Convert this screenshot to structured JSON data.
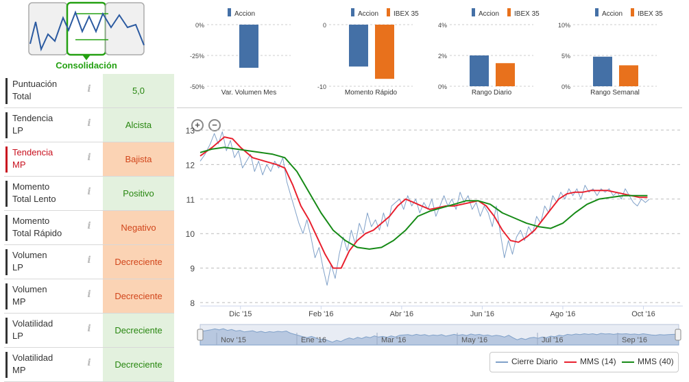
{
  "left_panel": {
    "trend_state": "Consolidación",
    "rows": [
      {
        "label1": "Puntuación",
        "label2": "Total",
        "value": "5,0",
        "status": "green",
        "highlight": false
      },
      {
        "label1": "Tendencia",
        "label2": "LP",
        "value": "Alcista",
        "status": "green",
        "highlight": false
      },
      {
        "label1": "Tendencia",
        "label2": "MP",
        "value": "Bajista",
        "status": "orange",
        "highlight": true
      },
      {
        "label1": "Momento",
        "label2": "Total Lento",
        "value": "Positivo",
        "status": "green",
        "highlight": false
      },
      {
        "label1": "Momento",
        "label2": "Total Rápido",
        "value": "Negativo",
        "status": "orange",
        "highlight": false
      },
      {
        "label1": "Volumen",
        "label2": "LP",
        "value": "Decreciente",
        "status": "orange",
        "highlight": false
      },
      {
        "label1": "Volumen",
        "label2": "MP",
        "value": "Decreciente",
        "status": "orange",
        "highlight": false
      },
      {
        "label1": "Volatilidad",
        "label2": "LP",
        "value": "Decreciente",
        "status": "green",
        "highlight": false
      },
      {
        "label1": "Volatilidad",
        "label2": "MP",
        "value": "Decreciente",
        "status": "green",
        "highlight": false
      }
    ],
    "info_glyph": "i"
  },
  "colors": {
    "accion": "#4470a6",
    "ibex": "#e8711c",
    "cierre": "#7fa0c8",
    "mms14": "#e8202e",
    "mms40": "#168a16",
    "green_text": "#23a011"
  },
  "chart_data": [
    {
      "type": "bar",
      "title": "Var. Volumen Mes",
      "legend": [
        "Accion"
      ],
      "series": [
        {
          "name": "Accion",
          "values": [
            -35
          ]
        }
      ],
      "ylim": [
        -50,
        0
      ],
      "yticks": [
        "0%",
        "-25%",
        "-50%"
      ]
    },
    {
      "type": "bar",
      "title": "Momento Rápido",
      "legend": [
        "Accion",
        "IBEX 35"
      ],
      "series": [
        {
          "name": "Accion",
          "values": [
            -6.8
          ]
        },
        {
          "name": "IBEX 35",
          "values": [
            -8.8
          ]
        }
      ],
      "ylim": [
        -10,
        0
      ],
      "yticks": [
        "0",
        "-10"
      ]
    },
    {
      "type": "bar",
      "title": "Rango Diario",
      "legend": [
        "Accion",
        "IBEX 35"
      ],
      "series": [
        {
          "name": "Accion",
          "values": [
            2.0
          ]
        },
        {
          "name": "IBEX 35",
          "values": [
            1.5
          ]
        }
      ],
      "ylim": [
        0,
        4
      ],
      "yticks": [
        "4%",
        "2%",
        "0%"
      ]
    },
    {
      "type": "bar",
      "title": "Rango Semanal",
      "legend": [
        "Accion",
        "IBEX 35"
      ],
      "series": [
        {
          "name": "Accion",
          "values": [
            4.8
          ]
        },
        {
          "name": "IBEX 35",
          "values": [
            3.4
          ]
        }
      ],
      "ylim": [
        0,
        10
      ],
      "yticks": [
        "10%",
        "5%",
        "0%"
      ]
    },
    {
      "type": "line",
      "title": "",
      "ylim": [
        8,
        13
      ],
      "yticks": [
        13,
        12,
        11,
        10,
        9,
        8
      ],
      "xrange": [
        0,
        11.4
      ],
      "xticks": [
        {
          "label": "Dic '15",
          "x": 1.0
        },
        {
          "label": "Feb '16",
          "x": 3.0
        },
        {
          "label": "Abr '16",
          "x": 5.0
        },
        {
          "label": "Jun '16",
          "x": 7.0
        },
        {
          "label": "Ago '16",
          "x": 9.0
        },
        {
          "label": "Oct '16",
          "x": 11.0
        }
      ],
      "series": [
        {
          "name": "Cierre Diario",
          "points": [
            [
              0,
              12.1
            ],
            [
              0.12,
              12.3
            ],
            [
              0.25,
              12.6
            ],
            [
              0.35,
              12.9
            ],
            [
              0.45,
              12.6
            ],
            [
              0.55,
              12.95
            ],
            [
              0.65,
              12.4
            ],
            [
              0.75,
              12.7
            ],
            [
              0.85,
              12.2
            ],
            [
              0.95,
              12.4
            ],
            [
              1.05,
              11.9
            ],
            [
              1.15,
              12.1
            ],
            [
              1.25,
              12.3
            ],
            [
              1.35,
              11.8
            ],
            [
              1.45,
              12.1
            ],
            [
              1.55,
              11.7
            ],
            [
              1.65,
              12.0
            ],
            [
              1.75,
              11.8
            ],
            [
              1.85,
              12.1
            ],
            [
              1.95,
              11.9
            ],
            [
              2.05,
              12.2
            ],
            [
              2.15,
              11.5
            ],
            [
              2.25,
              11.1
            ],
            [
              2.35,
              10.7
            ],
            [
              2.45,
              10.3
            ],
            [
              2.55,
              10.0
            ],
            [
              2.65,
              10.4
            ],
            [
              2.75,
              9.9
            ],
            [
              2.85,
              9.3
            ],
            [
              2.95,
              9.6
            ],
            [
              3.05,
              9.0
            ],
            [
              3.15,
              8.5
            ],
            [
              3.25,
              9.1
            ],
            [
              3.35,
              8.7
            ],
            [
              3.45,
              9.4
            ],
            [
              3.55,
              9.9
            ],
            [
              3.65,
              9.5
            ],
            [
              3.75,
              10.1
            ],
            [
              3.85,
              9.7
            ],
            [
              3.95,
              10.3
            ],
            [
              4.05,
              10.0
            ],
            [
              4.15,
              10.6
            ],
            [
              4.25,
              10.2
            ],
            [
              4.35,
              10.4
            ],
            [
              4.45,
              10.1
            ],
            [
              4.55,
              10.6
            ],
            [
              4.65,
              10.2
            ],
            [
              4.75,
              10.8
            ],
            [
              4.85,
              10.9
            ],
            [
              4.95,
              11.0
            ],
            [
              5.05,
              10.7
            ],
            [
              5.15,
              11.1
            ],
            [
              5.25,
              10.8
            ],
            [
              5.35,
              11.0
            ],
            [
              5.45,
              10.6
            ],
            [
              5.55,
              10.9
            ],
            [
              5.65,
              10.7
            ],
            [
              5.75,
              11.0
            ],
            [
              5.85,
              10.5
            ],
            [
              5.95,
              10.8
            ],
            [
              6.05,
              11.1
            ],
            [
              6.15,
              10.8
            ],
            [
              6.25,
              11.0
            ],
            [
              6.35,
              10.7
            ],
            [
              6.45,
              11.2
            ],
            [
              6.55,
              10.9
            ],
            [
              6.65,
              11.1
            ],
            [
              6.75,
              10.7
            ],
            [
              6.85,
              10.9
            ],
            [
              6.95,
              10.5
            ],
            [
              7.05,
              10.8
            ],
            [
              7.15,
              10.6
            ],
            [
              7.25,
              10.2
            ],
            [
              7.35,
              10.8
            ],
            [
              7.45,
              10.0
            ],
            [
              7.55,
              9.3
            ],
            [
              7.65,
              9.8
            ],
            [
              7.75,
              9.4
            ],
            [
              7.85,
              9.9
            ],
            [
              7.95,
              10.1
            ],
            [
              8.05,
              9.8
            ],
            [
              8.15,
              10.2
            ],
            [
              8.25,
              10.0
            ],
            [
              8.35,
              10.5
            ],
            [
              8.45,
              10.3
            ],
            [
              8.55,
              10.8
            ],
            [
              8.65,
              10.6
            ],
            [
              8.75,
              11.1
            ],
            [
              8.85,
              10.9
            ],
            [
              8.95,
              11.2
            ],
            [
              9.05,
              11.0
            ],
            [
              9.15,
              11.3
            ],
            [
              9.25,
              11.1
            ],
            [
              9.35,
              11.3
            ],
            [
              9.45,
              11.0
            ],
            [
              9.55,
              11.4
            ],
            [
              9.65,
              11.2
            ],
            [
              9.75,
              11.3
            ],
            [
              9.85,
              11.1
            ],
            [
              9.95,
              11.3
            ],
            [
              10.05,
              11.2
            ],
            [
              10.15,
              11.3
            ],
            [
              10.25,
              11.1
            ],
            [
              10.35,
              11.2
            ],
            [
              10.45,
              11.0
            ],
            [
              10.55,
              11.3
            ],
            [
              10.65,
              11.1
            ],
            [
              10.75,
              10.9
            ],
            [
              10.85,
              10.8
            ],
            [
              10.95,
              11.0
            ],
            [
              11.05,
              10.9
            ],
            [
              11.15,
              11.0
            ]
          ]
        },
        {
          "name": "MMS (14)",
          "points": [
            [
              0,
              12.25
            ],
            [
              0.3,
              12.5
            ],
            [
              0.6,
              12.8
            ],
            [
              0.8,
              12.75
            ],
            [
              1.0,
              12.5
            ],
            [
              1.3,
              12.2
            ],
            [
              1.6,
              12.1
            ],
            [
              1.9,
              12.0
            ],
            [
              2.1,
              11.9
            ],
            [
              2.3,
              11.4
            ],
            [
              2.5,
              10.8
            ],
            [
              2.7,
              10.4
            ],
            [
              2.9,
              9.9
            ],
            [
              3.1,
              9.4
            ],
            [
              3.3,
              9.0
            ],
            [
              3.5,
              9.0
            ],
            [
              3.7,
              9.5
            ],
            [
              3.9,
              9.8
            ],
            [
              4.1,
              10.0
            ],
            [
              4.3,
              10.1
            ],
            [
              4.5,
              10.3
            ],
            [
              4.7,
              10.5
            ],
            [
              4.9,
              10.8
            ],
            [
              5.1,
              11.0
            ],
            [
              5.3,
              10.9
            ],
            [
              5.5,
              10.8
            ],
            [
              5.7,
              10.7
            ],
            [
              5.9,
              10.75
            ],
            [
              6.1,
              10.8
            ],
            [
              6.3,
              10.8
            ],
            [
              6.5,
              10.85
            ],
            [
              6.7,
              10.9
            ],
            [
              6.9,
              10.95
            ],
            [
              7.1,
              10.8
            ],
            [
              7.3,
              10.5
            ],
            [
              7.5,
              10.1
            ],
            [
              7.7,
              9.8
            ],
            [
              7.9,
              9.75
            ],
            [
              8.1,
              9.9
            ],
            [
              8.3,
              10.1
            ],
            [
              8.5,
              10.4
            ],
            [
              8.7,
              10.7
            ],
            [
              8.9,
              11.0
            ],
            [
              9.1,
              11.15
            ],
            [
              9.3,
              11.2
            ],
            [
              9.5,
              11.2
            ],
            [
              9.7,
              11.25
            ],
            [
              9.9,
              11.25
            ],
            [
              10.1,
              11.25
            ],
            [
              10.3,
              11.2
            ],
            [
              10.5,
              11.15
            ],
            [
              10.7,
              11.1
            ],
            [
              10.9,
              11.05
            ],
            [
              11.1,
              11.05
            ]
          ]
        },
        {
          "name": "MMS (40)",
          "points": [
            [
              0,
              12.35
            ],
            [
              0.3,
              12.45
            ],
            [
              0.6,
              12.5
            ],
            [
              0.9,
              12.45
            ],
            [
              1.2,
              12.4
            ],
            [
              1.5,
              12.35
            ],
            [
              1.8,
              12.3
            ],
            [
              2.1,
              12.2
            ],
            [
              2.4,
              11.8
            ],
            [
              2.7,
              11.2
            ],
            [
              3.0,
              10.6
            ],
            [
              3.3,
              10.1
            ],
            [
              3.6,
              9.8
            ],
            [
              3.9,
              9.6
            ],
            [
              4.2,
              9.55
            ],
            [
              4.5,
              9.6
            ],
            [
              4.8,
              9.8
            ],
            [
              5.1,
              10.1
            ],
            [
              5.4,
              10.5
            ],
            [
              5.7,
              10.65
            ],
            [
              6.0,
              10.75
            ],
            [
              6.3,
              10.85
            ],
            [
              6.6,
              10.95
            ],
            [
              6.9,
              10.95
            ],
            [
              7.2,
              10.85
            ],
            [
              7.5,
              10.6
            ],
            [
              7.8,
              10.45
            ],
            [
              8.1,
              10.3
            ],
            [
              8.4,
              10.2
            ],
            [
              8.7,
              10.15
            ],
            [
              9.0,
              10.3
            ],
            [
              9.3,
              10.6
            ],
            [
              9.6,
              10.85
            ],
            [
              9.9,
              11.0
            ],
            [
              10.2,
              11.05
            ],
            [
              10.5,
              11.1
            ],
            [
              10.8,
              11.1
            ],
            [
              11.1,
              11.1
            ]
          ]
        }
      ],
      "legend": [
        "Cierre Diario",
        "MMS (14)",
        "MMS (40)"
      ]
    }
  ],
  "navigator": {
    "labels": [
      "Nov '15",
      "Ene '16",
      "Mar '16",
      "May '16",
      "Jul '16",
      "Sep '16"
    ]
  },
  "zoom": {
    "in": "+",
    "out": "−"
  }
}
